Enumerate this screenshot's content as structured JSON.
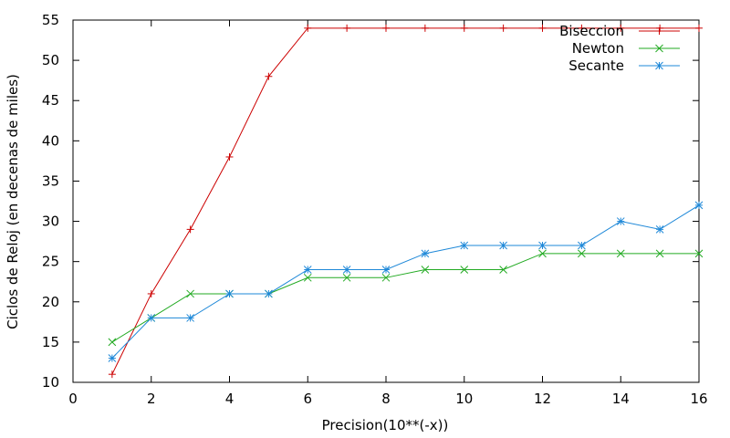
{
  "chart_data": {
    "type": "line",
    "title": "",
    "xlabel": "Precision(10**(-x))",
    "ylabel": "Ciclos de Reloj (en decenas de miles)",
    "xlim": [
      0,
      16
    ],
    "ylim": [
      10,
      55
    ],
    "xticks": [
      "0",
      "2",
      "4",
      "6",
      "8",
      "10",
      "12",
      "14",
      "16"
    ],
    "yticks": [
      "10",
      "15",
      "20",
      "25",
      "30",
      "35",
      "40",
      "45",
      "50",
      "55"
    ],
    "grid": false,
    "legend_position": "top-right",
    "series": [
      {
        "name": "Biseccion",
        "color": "#cc0000",
        "marker": "plus",
        "x": [
          1,
          2,
          3,
          4,
          5,
          6,
          7,
          8,
          9,
          10,
          11,
          12,
          13,
          14,
          15,
          16
        ],
        "y": [
          11,
          21,
          29,
          38,
          48,
          54,
          54,
          54,
          54,
          54,
          54,
          54,
          54,
          54,
          54,
          54
        ]
      },
      {
        "name": "Newton",
        "color": "#22aa22",
        "marker": "cross",
        "x": [
          1,
          2,
          3,
          4,
          5,
          6,
          7,
          8,
          9,
          10,
          11,
          12,
          13,
          14,
          15,
          16
        ],
        "y": [
          15,
          18,
          21,
          21,
          21,
          23,
          23,
          23,
          24,
          24,
          24,
          26,
          26,
          26,
          26,
          26
        ]
      },
      {
        "name": "Secante",
        "color": "#1e88d8",
        "marker": "star",
        "x": [
          1,
          2,
          3,
          4,
          5,
          6,
          7,
          8,
          9,
          10,
          11,
          12,
          13,
          14,
          15,
          16
        ],
        "y": [
          13,
          18,
          18,
          21,
          21,
          24,
          24,
          24,
          26,
          27,
          27,
          27,
          27,
          30,
          29,
          32
        ]
      }
    ]
  }
}
